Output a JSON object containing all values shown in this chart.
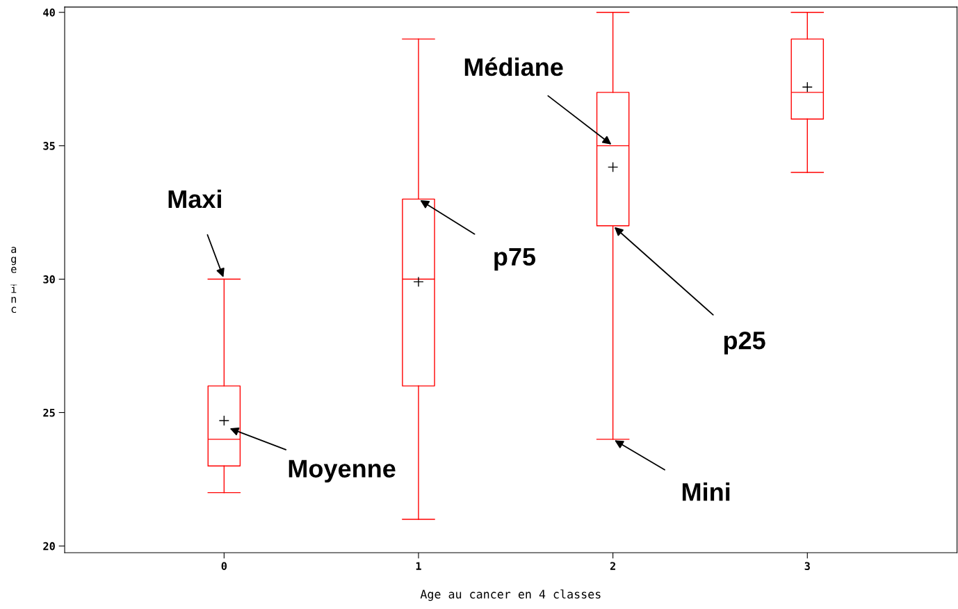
{
  "chart_data": {
    "type": "box",
    "xlabel": "Age au cancer en 4 classes",
    "ylabel": "age_inc",
    "categories": [
      "0",
      "1",
      "2",
      "3"
    ],
    "color": "#ff0000",
    "boxes": [
      {
        "low": 22,
        "q1": 23,
        "median": 24,
        "q3": 26,
        "high": 30,
        "mean": 24.7
      },
      {
        "low": 21,
        "q1": 26,
        "median": 30,
        "q3": 33,
        "high": 39,
        "mean": 29.9
      },
      {
        "low": 24,
        "q1": 32,
        "median": 35,
        "q3": 37,
        "high": 40,
        "mean": 34.2
      },
      {
        "low": 34,
        "q1": 36,
        "median": 37,
        "q3": 39,
        "high": 40,
        "mean": 37.2
      }
    ],
    "ylim": [
      19.75,
      40.2
    ],
    "yticks": [
      20,
      25,
      30,
      35,
      40
    ],
    "grid": false,
    "annotations": [
      {
        "text": "Maxi",
        "x": "0",
        "y": 30
      },
      "Moyenne",
      {
        "text": "p75",
        "x": "1",
        "y": 33
      },
      {
        "text": "Médiane",
        "x": "2",
        "y": 35
      },
      {
        "text": "p25",
        "x": "2",
        "y": 32
      },
      {
        "text": "Mini",
        "x": "2",
        "y": 24
      }
    ]
  }
}
